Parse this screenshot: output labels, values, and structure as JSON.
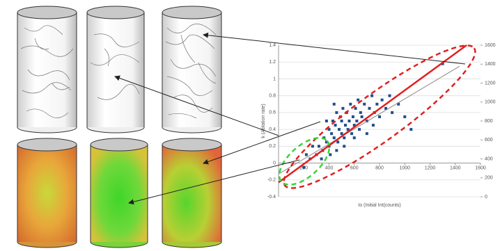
{
  "chart_data": {
    "type": "scatter",
    "x_label": "Io (Initial Int(counts)",
    "y_label": "k (Ablation rate)",
    "x": [
      250,
      300,
      320,
      350,
      360,
      380,
      400,
      400,
      420,
      430,
      440,
      450,
      460,
      470,
      480,
      490,
      500,
      500,
      510,
      520,
      530,
      540,
      550,
      560,
      570,
      580,
      590,
      600,
      610,
      620,
      630,
      640,
      650,
      660,
      680,
      700,
      720,
      740,
      760,
      780,
      800,
      820,
      850,
      880,
      900,
      950,
      1000,
      1050,
      1300,
      200,
      220,
      270,
      340,
      410,
      460,
      520,
      380,
      440,
      600,
      700,
      750
    ],
    "values": [
      0.05,
      0.1,
      0.2,
      0.15,
      0.3,
      0.25,
      0.2,
      0.4,
      0.35,
      0.5,
      0.3,
      0.45,
      0.6,
      0.25,
      0.4,
      0.55,
      0.35,
      0.5,
      0.65,
      0.3,
      0.45,
      0.6,
      0.4,
      0.5,
      0.7,
      0.35,
      0.55,
      0.45,
      0.65,
      0.5,
      0.75,
      0.4,
      0.6,
      0.55,
      0.7,
      0.5,
      0.65,
      0.8,
      0.6,
      0.7,
      0.55,
      0.75,
      0.65,
      0.8,
      0.6,
      0.7,
      0.55,
      0.4,
      1.18,
      -0.05,
      0.1,
      0.2,
      0.05,
      0.1,
      0.15,
      0.2,
      0.5,
      0.7,
      0.3,
      0.35,
      0.45
    ],
    "color": "#1f4e8c",
    "fit_line": {
      "color": "#e02020",
      "x": [
        0,
        1490
      ],
      "values": [
        -0.23,
        1.4
      ]
    },
    "trend_line": {
      "color": "#8a8a8a",
      "x": [
        0,
        1434
      ],
      "values": [
        -0.13,
        1.15
      ]
    },
    "xlim": [
      0,
      1600
    ],
    "xticks": [
      200,
      400,
      600,
      800,
      1000,
      1200,
      1400,
      1600
    ],
    "ylim": [
      -0.4,
      1.4
    ],
    "yticks": [
      -0.4,
      -0.2,
      0,
      0.2,
      0.4,
      0.6,
      0.8,
      1,
      1.2,
      1.4
    ],
    "y2lim": [
      0,
      1600
    ],
    "y2ticks": [
      0,
      200,
      400,
      600,
      800,
      1000,
      1200,
      1400,
      1600
    ],
    "grid": true
  }
}
